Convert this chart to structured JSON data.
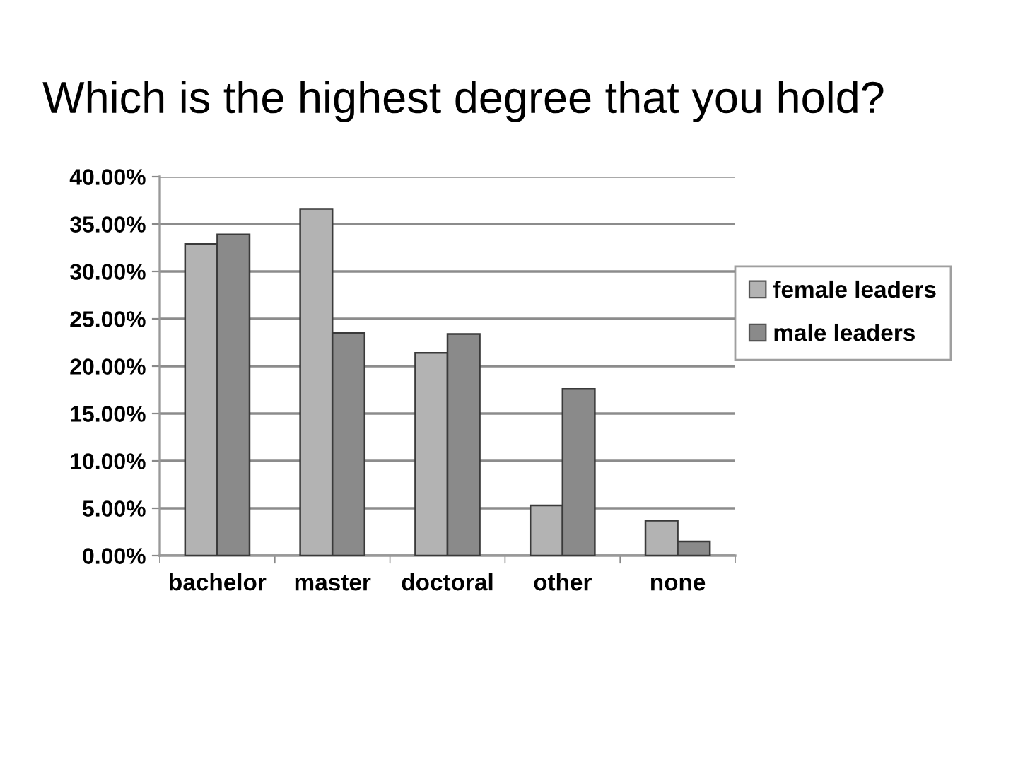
{
  "chart_data": {
    "type": "bar",
    "title": "Which is the highest degree that you hold?",
    "categories": [
      "bachelor",
      "master",
      "doctoral",
      "other",
      "none"
    ],
    "series": [
      {
        "name": "female leaders",
        "color": "#b3b3b3",
        "values": [
          32.9,
          36.6,
          21.4,
          5.3,
          3.7
        ]
      },
      {
        "name": "male leaders",
        "color": "#8a8a8a",
        "values": [
          33.9,
          23.5,
          23.4,
          17.6,
          1.5
        ]
      }
    ],
    "ylim": [
      0,
      40
    ],
    "yticks": [
      {
        "value": 0,
        "label": "0.00%"
      },
      {
        "value": 5,
        "label": "5.00%"
      },
      {
        "value": 10,
        "label": "10.00%"
      },
      {
        "value": 15,
        "label": "15.00%"
      },
      {
        "value": 20,
        "label": "20.00%"
      },
      {
        "value": 25,
        "label": "25.00%"
      },
      {
        "value": 30,
        "label": "30.00%"
      },
      {
        "value": 35,
        "label": "35.00%"
      },
      {
        "value": 40,
        "label": "40.00%"
      }
    ],
    "grid": "y",
    "legend": "right"
  }
}
